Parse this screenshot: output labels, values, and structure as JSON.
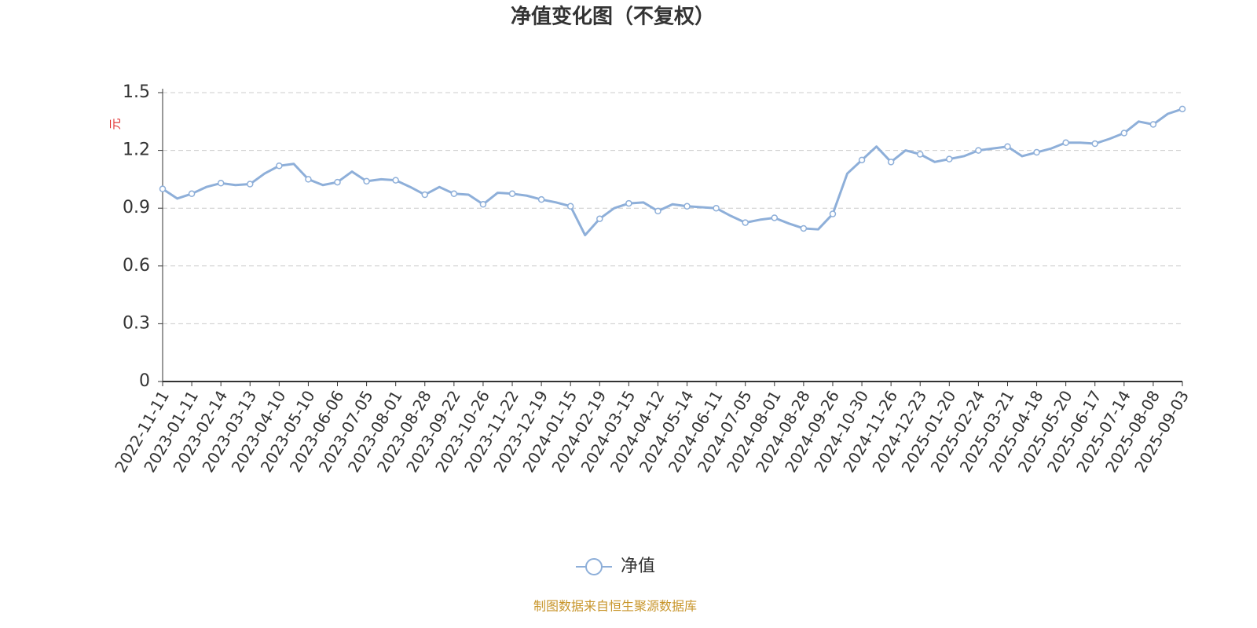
{
  "chart_data": {
    "type": "line",
    "title": "净值变化图（不复权）",
    "y_label": "元",
    "source": "制图数据来自恒生聚源数据库",
    "categories": [
      "2022-11-11",
      null,
      "2023-01-11",
      null,
      "2023-02-14",
      null,
      "2023-03-13",
      null,
      "2023-04-10",
      null,
      "2023-05-10",
      null,
      "2023-06-06",
      null,
      "2023-07-05",
      null,
      "2023-08-01",
      null,
      "2023-08-28",
      null,
      "2023-09-22",
      null,
      "2023-10-26",
      null,
      "2023-11-22",
      null,
      "2023-12-19",
      null,
      "2024-01-15",
      null,
      "2024-02-19",
      null,
      "2024-03-15",
      null,
      "2024-04-12",
      null,
      "2024-05-14",
      null,
      "2024-06-11",
      null,
      "2024-07-05",
      null,
      "2024-08-01",
      null,
      "2024-08-28",
      null,
      "2024-09-26",
      null,
      "2024-10-30",
      null,
      "2024-11-26",
      null,
      "2024-12-23",
      null,
      "2025-01-20",
      null,
      "2025-02-24",
      null,
      "2025-03-21",
      null,
      "2025-04-18",
      null,
      "2025-05-20",
      null,
      "2025-06-17",
      null,
      "2025-07-14",
      null,
      "2025-08-08",
      null,
      "2025-09-03"
    ],
    "series": [
      {
        "name": "净值",
        "color": "#8eafd9",
        "values": [
          1.0,
          0.95,
          0.975,
          1.01,
          1.03,
          1.02,
          1.025,
          1.08,
          1.12,
          1.13,
          1.05,
          1.02,
          1.035,
          1.09,
          1.04,
          1.05,
          1.045,
          1.01,
          0.97,
          1.01,
          0.975,
          0.97,
          0.92,
          0.98,
          0.975,
          0.965,
          0.945,
          0.93,
          0.91,
          0.76,
          0.845,
          0.9,
          0.925,
          0.93,
          0.885,
          0.92,
          0.91,
          0.905,
          0.9,
          0.86,
          0.825,
          0.84,
          0.85,
          0.82,
          0.795,
          0.79,
          0.87,
          1.08,
          1.15,
          1.22,
          1.14,
          1.2,
          1.18,
          1.14,
          1.155,
          1.17,
          1.2,
          1.21,
          1.22,
          1.17,
          1.19,
          1.21,
          1.24,
          1.24,
          1.235,
          1.26,
          1.29,
          1.35,
          1.335,
          1.39,
          1.415
        ]
      }
    ],
    "ylim": [
      0,
      1.5
    ],
    "yticks": [
      0,
      0.3,
      0.6,
      0.9,
      1.2,
      1.5
    ],
    "grid": true,
    "legend": "bottom"
  }
}
